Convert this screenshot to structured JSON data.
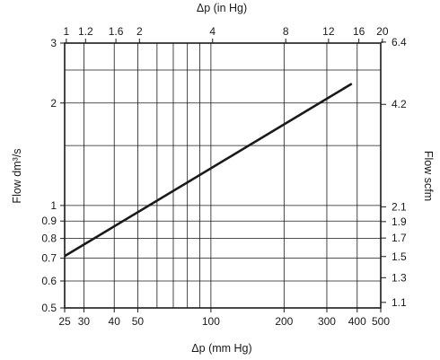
{
  "chart_data": {
    "type": "line",
    "xlabel": "Δp (mm Hg)",
    "x2label": "Δp (in Hg)",
    "ylabel": "Flow dm³/s",
    "y2label": "Flow scfm",
    "x_scale": "log",
    "y_scale": "log",
    "xlim": [
      25,
      500
    ],
    "ylim": [
      0.5,
      3
    ],
    "grid": true,
    "x_ticks": [
      {
        "value": 25,
        "label": "25"
      },
      {
        "value": 30,
        "label": "30"
      },
      {
        "value": 40,
        "label": "40"
      },
      {
        "value": 50,
        "label": "50"
      },
      {
        "value": 100,
        "label": "100"
      },
      {
        "value": 200,
        "label": "200"
      },
      {
        "value": 300,
        "label": "300"
      },
      {
        "value": 400,
        "label": "400"
      },
      {
        "value": 500,
        "label": "500"
      }
    ],
    "x2_ticks": [
      {
        "value": 1,
        "label": "1"
      },
      {
        "value": 1.2,
        "label": "1.2"
      },
      {
        "value": 1.6,
        "label": "1.6"
      },
      {
        "value": 2,
        "label": "2"
      },
      {
        "value": 4,
        "label": "4"
      },
      {
        "value": 8,
        "label": "8"
      },
      {
        "value": 12,
        "label": "12"
      },
      {
        "value": 16,
        "label": "16"
      },
      {
        "value": 20,
        "label": "20"
      }
    ],
    "y_ticks": [
      {
        "value": 0.5,
        "label": "0.5"
      },
      {
        "value": 0.6,
        "label": "0.6"
      },
      {
        "value": 0.7,
        "label": "0.7"
      },
      {
        "value": 0.8,
        "label": "0.8"
      },
      {
        "value": 0.9,
        "label": "0.9"
      },
      {
        "value": 1,
        "label": "1"
      },
      {
        "value": 2,
        "label": "2"
      },
      {
        "value": 3,
        "label": "3"
      }
    ],
    "y2_ticks": [
      {
        "value": 1.1,
        "label": "1.1"
      },
      {
        "value": 1.3,
        "label": "1.3"
      },
      {
        "value": 1.5,
        "label": "1.5"
      },
      {
        "value": 1.7,
        "label": "1.7"
      },
      {
        "value": 1.9,
        "label": "1.9"
      },
      {
        "value": 2.1,
        "label": "2.1"
      },
      {
        "value": 4.2,
        "label": "4.2"
      },
      {
        "value": 6.4,
        "label": "6.4"
      }
    ],
    "x_gridlines": [
      25,
      30,
      40,
      50,
      60,
      70,
      80,
      90,
      100,
      200,
      300,
      400,
      500
    ],
    "y_gridlines": [
      0.5,
      0.6,
      0.7,
      0.8,
      0.9,
      1,
      1.5,
      2,
      2.5,
      3
    ],
    "series": [
      {
        "x": [
          25,
          380
        ],
        "y": [
          0.71,
          2.28
        ]
      }
    ]
  }
}
